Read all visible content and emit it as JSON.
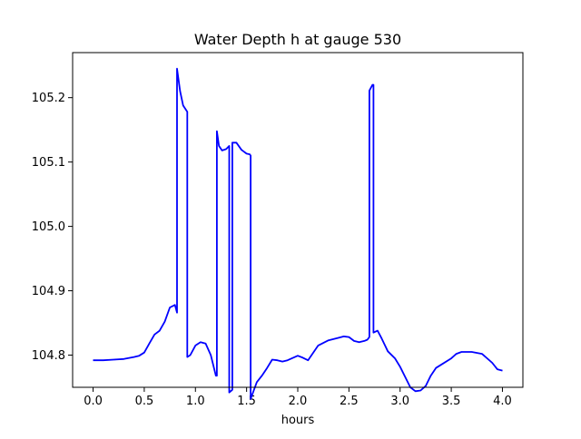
{
  "chart_data": {
    "type": "line",
    "title": "Water Depth h at gauge 530",
    "xlabel": "hours",
    "ylabel": "",
    "xlim": [
      -0.2,
      4.2
    ],
    "ylim": [
      104.75,
      105.27
    ],
    "xticks": [
      0.0,
      0.5,
      1.0,
      1.5,
      2.0,
      2.5,
      3.0,
      3.5,
      4.0
    ],
    "xtick_labels": [
      "0.0",
      "0.5",
      "1.0",
      "1.5",
      "2.0",
      "2.5",
      "3.0",
      "3.5",
      "4.0"
    ],
    "yticks": [
      104.8,
      104.9,
      105.0,
      105.1,
      105.2
    ],
    "ytick_labels": [
      "104.8",
      "104.9",
      "105.0",
      "105.1",
      "105.2"
    ],
    "grid": false,
    "line_color": "#0000ff",
    "series": [
      {
        "x": [
          0.0,
          0.1,
          0.2,
          0.3,
          0.4,
          0.45,
          0.5,
          0.55,
          0.6,
          0.65,
          0.7,
          0.75,
          0.8,
          0.82,
          0.82,
          0.85,
          0.88,
          0.92,
          0.92,
          0.95,
          1.0,
          1.05,
          1.1,
          1.15,
          1.2,
          1.21,
          1.21,
          1.23,
          1.26,
          1.3,
          1.33,
          1.33,
          1.36,
          1.36,
          1.4,
          1.45,
          1.5,
          1.53,
          1.54,
          1.54,
          1.6,
          1.65,
          1.7,
          1.75,
          1.8,
          1.85,
          1.9,
          2.0,
          2.05,
          2.1,
          2.2,
          2.3,
          2.4,
          2.45,
          2.5,
          2.55,
          2.6,
          2.65,
          2.68,
          2.7,
          2.7,
          2.73,
          2.74,
          2.74,
          2.78,
          2.82,
          2.88,
          2.95,
          3.0,
          3.1,
          3.15,
          3.2,
          3.25,
          3.3,
          3.35,
          3.4,
          3.5,
          3.55,
          3.6,
          3.7,
          3.8,
          3.9,
          3.95,
          4.0
        ],
        "y": [
          104.792,
          104.792,
          104.793,
          104.794,
          104.797,
          104.799,
          104.804,
          104.818,
          104.832,
          104.838,
          104.852,
          104.874,
          104.878,
          104.866,
          105.245,
          105.21,
          105.188,
          105.178,
          104.797,
          104.8,
          104.815,
          104.82,
          104.818,
          104.8,
          104.768,
          104.768,
          105.148,
          105.125,
          105.118,
          105.12,
          105.125,
          104.742,
          104.746,
          105.13,
          105.13,
          105.119,
          105.113,
          105.112,
          105.11,
          104.732,
          104.758,
          104.768,
          104.78,
          104.793,
          104.792,
          104.79,
          104.792,
          104.799,
          104.796,
          104.792,
          104.815,
          104.823,
          104.827,
          104.829,
          104.828,
          104.822,
          104.82,
          104.822,
          104.824,
          104.828,
          105.211,
          105.22,
          105.22,
          104.835,
          104.838,
          104.826,
          104.806,
          104.795,
          104.782,
          104.75,
          104.744,
          104.745,
          104.752,
          104.768,
          104.78,
          104.785,
          104.795,
          104.802,
          104.805,
          104.805,
          104.802,
          104.788,
          104.778,
          104.776
        ]
      }
    ]
  }
}
